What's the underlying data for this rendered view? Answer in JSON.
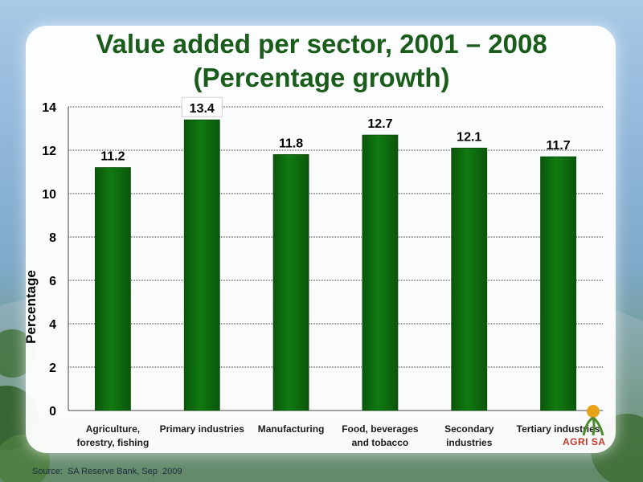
{
  "title_line1": "Value added per sector, 2001 – 2008",
  "title_line2": "(Percentage growth)",
  "source": "Source:  SA Reserve Bank, Sep  2009",
  "logo_text": "AGRI SA",
  "colors": {
    "bar": "#117a11",
    "bar_dark": "#0a560a",
    "title": "#1a5c1a"
  },
  "chart_data": {
    "type": "bar",
    "title": "Value added per sector, 2001 – 2008 (Percentage growth)",
    "ylabel": "Percentage",
    "xlabel": "",
    "ylim": [
      0,
      14
    ],
    "yticks": [
      0,
      2,
      4,
      6,
      8,
      10,
      12,
      14
    ],
    "grid": true,
    "categories": [
      [
        "Agriculture,",
        "forestry, fishing"
      ],
      [
        "Primary industries"
      ],
      [
        "Manufacturing"
      ],
      [
        "Food, beverages",
        "and tobacco"
      ],
      [
        "Secondary",
        "industries"
      ],
      [
        "Tertiary industries"
      ]
    ],
    "values": [
      11.2,
      13.4,
      11.8,
      12.7,
      12.1,
      11.7
    ],
    "data_labels": [
      "11.2",
      "13.4",
      "11.8",
      "12.7",
      "12.1",
      "11.7"
    ]
  }
}
